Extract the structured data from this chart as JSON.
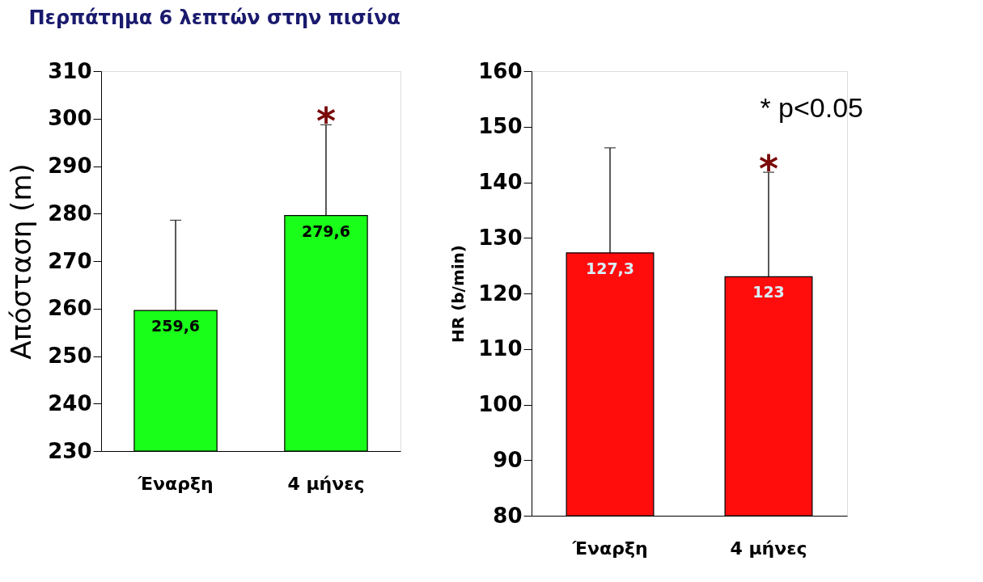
{
  "chart_data": [
    {
      "type": "bar",
      "title": "Περπάτημα 6 λεπτών στην πισίνα",
      "ylabel": "Απόσταση (m)",
      "categories": [
        "Έναρξη",
        "4 μήνες"
      ],
      "values": [
        259.6,
        279.6
      ],
      "color": "#1aff1a",
      "value_labels": [
        "259,6",
        "279,6"
      ],
      "errors": [
        [
          259.6,
          278.6
        ],
        [
          279.6,
          298.7
        ]
      ],
      "ylim": [
        230,
        310
      ],
      "yticks": [
        230,
        240,
        250,
        260,
        270,
        280,
        290,
        300,
        310
      ],
      "grid": false,
      "annotations": [
        "*"
      ]
    },
    {
      "type": "bar",
      "ylabel": "HR (b/min)",
      "categories": [
        "Έναρξη",
        "4 μήνες"
      ],
      "values": [
        127.3,
        123
      ],
      "color": "#ff0d0d",
      "value_labels": [
        "127,3",
        "123"
      ],
      "errors": [
        [
          127.3,
          146.2
        ],
        [
          123,
          141.8
        ]
      ],
      "ylim": [
        80,
        160
      ],
      "yticks": [
        80,
        90,
        100,
        110,
        120,
        130,
        140,
        150,
        160
      ],
      "grid": false,
      "annotations": [
        "*",
        "* p<0.05"
      ]
    }
  ]
}
